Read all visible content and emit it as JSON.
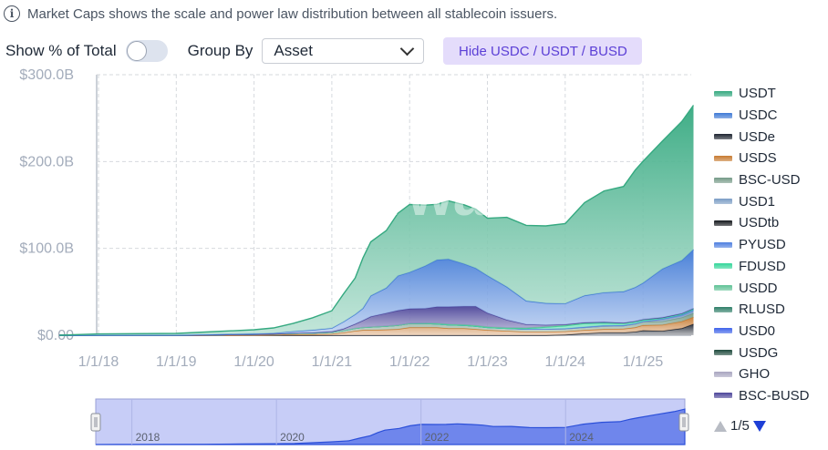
{
  "info": {
    "icon": "info-circle-icon",
    "text": "Market Caps shows the scale and power law distribution between all stablecoin issuers."
  },
  "controls": {
    "show_pct_label": "Show % of Total",
    "show_pct_on": false,
    "group_by_label": "Group By",
    "group_by_value": "Asset",
    "hide_button_label": "Hide USDC / USDT / BUSD"
  },
  "watermark": {
    "brand": "rwa",
    "suffix": ".xyz"
  },
  "legend": [
    {
      "name": "USDT",
      "color": "#35a980"
    },
    {
      "name": "USDC",
      "color": "#3f79d6"
    },
    {
      "name": "USDe",
      "color": "#1e2430"
    },
    {
      "name": "USDS",
      "color": "#c77a30"
    },
    {
      "name": "BSC-USD",
      "color": "#749a87"
    },
    {
      "name": "USD1",
      "color": "#7a9cc5"
    },
    {
      "name": "USDtb",
      "color": "#15191e"
    },
    {
      "name": "PYUSD",
      "color": "#4f7fe0"
    },
    {
      "name": "FDUSD",
      "color": "#33d69a"
    },
    {
      "name": "USDD",
      "color": "#5fc296"
    },
    {
      "name": "RLUSD",
      "color": "#2e7e68"
    },
    {
      "name": "USD0",
      "color": "#3e63ea"
    },
    {
      "name": "USDG",
      "color": "#1f4a3c"
    },
    {
      "name": "GHO",
      "color": "#a8a5c0"
    },
    {
      "name": "BSC-BUSD",
      "color": "#4c459a"
    }
  ],
  "pager": {
    "label": "1/5"
  },
  "navigator": {
    "labels": [
      "2018",
      "2020",
      "2022",
      "2024"
    ]
  },
  "chart_data": {
    "type": "area",
    "stacked": true,
    "x_tick_labels": [
      "1/1/18",
      "1/1/19",
      "1/1/20",
      "1/1/21",
      "1/1/22",
      "1/1/23",
      "1/1/24",
      "1/1/25"
    ],
    "y_tick_labels": [
      "$0.00",
      "$100.0B",
      "$200.0B",
      "$300.0B"
    ],
    "ylim": [
      0,
      300
    ],
    "y_unit": "B USD",
    "grid": true,
    "legend_position": "right",
    "x": [
      2017.5,
      2018.0,
      2019.0,
      2019.5,
      2020.0,
      2020.25,
      2020.5,
      2020.75,
      2021.0,
      2021.15,
      2021.3,
      2021.4,
      2021.5,
      2021.7,
      2021.85,
      2022.0,
      2022.2,
      2022.35,
      2022.5,
      2022.7,
      2022.85,
      2023.0,
      2023.25,
      2023.5,
      2023.75,
      2024.0,
      2024.25,
      2024.5,
      2024.75,
      2024.9,
      2025.0,
      2025.25,
      2025.5,
      2025.65
    ],
    "series": [
      {
        "name": "USDe",
        "values": [
          0,
          0,
          0,
          0,
          0,
          0,
          0,
          0,
          0,
          0,
          0,
          0,
          0,
          0,
          0,
          0,
          0,
          0,
          0,
          0,
          0,
          0,
          0,
          0,
          0,
          0.5,
          2,
          3,
          3,
          4,
          5.5,
          5,
          8,
          13
        ]
      },
      {
        "name": "USDS",
        "values": [
          0,
          0,
          0,
          0,
          0.2,
          0.5,
          1,
          1,
          1.5,
          3,
          5,
          6,
          6,
          6.5,
          7,
          9,
          9,
          9,
          8,
          8,
          7,
          6,
          5,
          4,
          4,
          4,
          4,
          4,
          4.5,
          5,
          6,
          7,
          8,
          8
        ]
      },
      {
        "name": "BSC-USD",
        "values": [
          0,
          0,
          0,
          0.5,
          1,
          1,
          1.2,
          1.5,
          2,
          2.5,
          3,
          3,
          3.5,
          4,
          4.5,
          4.5,
          4.5,
          4,
          4,
          3.5,
          3.5,
          3,
          3,
          3,
          3,
          3,
          3,
          3.5,
          3.5,
          4,
          4,
          4,
          4.5,
          4.5
        ]
      },
      {
        "name": "USD1",
        "values": [
          0,
          0,
          0,
          0,
          0,
          0,
          0,
          0,
          0,
          0,
          0,
          0,
          0,
          0,
          0,
          0,
          0,
          0,
          0,
          0,
          0,
          0,
          0,
          0,
          0,
          0,
          0,
          0,
          0,
          0,
          0,
          2,
          2,
          2.5
        ]
      },
      {
        "name": "PYUSD",
        "values": [
          0,
          0,
          0,
          0,
          0,
          0,
          0,
          0,
          0,
          0,
          0,
          0,
          0,
          0,
          0,
          0,
          0,
          0,
          0,
          0,
          0,
          0,
          0,
          0,
          0.2,
          0.3,
          0.5,
          0.8,
          0.5,
          0.5,
          0.5,
          0.8,
          1,
          1.2
        ]
      },
      {
        "name": "FDUSD",
        "values": [
          0,
          0,
          0,
          0,
          0,
          0,
          0,
          0,
          0,
          0,
          0,
          0,
          0,
          0,
          0,
          0,
          0,
          0,
          0,
          0,
          0,
          0,
          0,
          0.8,
          2,
          3,
          4,
          3,
          2,
          2,
          1.5,
          1,
          1,
          1
        ]
      },
      {
        "name": "USDD",
        "values": [
          0,
          0,
          0,
          0,
          0,
          0,
          0,
          0,
          0,
          0,
          0,
          0,
          0,
          0,
          0,
          0,
          0.3,
          0.7,
          0.7,
          0.7,
          0.7,
          0.7,
          0.7,
          0.7,
          0.7,
          0.7,
          0.7,
          0.7,
          0.7,
          0.7,
          0.7,
          0.7,
          0.7,
          0.7
        ]
      },
      {
        "name": "BSC-BUSD",
        "values": [
          0,
          0,
          0,
          0,
          0,
          0.1,
          0.3,
          0.5,
          0.7,
          2,
          5,
          8,
          12,
          15,
          17,
          17,
          17,
          19,
          20,
          21,
          22,
          16,
          9,
          4,
          2,
          1,
          0.5,
          0.2,
          0.1,
          0,
          0,
          0,
          0,
          0
        ]
      },
      {
        "name": "USDC",
        "values": [
          0,
          0.2,
          0.3,
          0.5,
          0.6,
          0.8,
          2,
          3,
          4,
          8,
          11,
          14,
          24,
          29,
          40,
          42,
          49,
          54,
          55,
          49,
          44,
          43,
          38,
          27,
          25,
          24,
          31,
          34,
          36,
          39,
          42,
          56,
          61,
          68
        ]
      },
      {
        "name": "USDT",
        "values": [
          0,
          1.3,
          1.8,
          3.2,
          4.5,
          6,
          9,
          14,
          20,
          32,
          42,
          58,
          62,
          66,
          72,
          78,
          70,
          64,
          67,
          68,
          68,
          66,
          80,
          87,
          89,
          92,
          107,
          117,
          121,
          135,
          140,
          147,
          160,
          166
        ]
      }
    ]
  }
}
